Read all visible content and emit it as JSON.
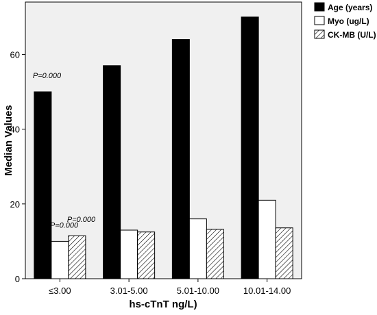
{
  "chart_data": {
    "type": "bar",
    "categories": [
      "≤3.00",
      "3.01-5.00",
      "5.01-10.00",
      "10.01-14.00"
    ],
    "series": [
      {
        "name": "Age (years)",
        "values": [
          50,
          57,
          64,
          70
        ],
        "fill": "#000000",
        "pattern": "solid"
      },
      {
        "name": "Myo (ug/L)",
        "values": [
          10,
          13,
          16,
          21
        ],
        "fill": "#ffffff",
        "pattern": "none"
      },
      {
        "name": "CK-MB (U/L)",
        "values": [
          11.5,
          12.5,
          13.2,
          13.6
        ],
        "fill": "#ffffff",
        "pattern": "hatch"
      }
    ],
    "xlabel": "hs-cTnT ng/L)",
    "ylabel": "Median Values",
    "ylim": [
      0,
      74
    ],
    "yticks": [
      0,
      20,
      40,
      60
    ],
    "annotations": [
      {
        "text": "P=0.000",
        "series": 0,
        "category": 0
      },
      {
        "text": "P=0.000",
        "series": 1,
        "category": 0
      },
      {
        "text": "P=0.000",
        "series": 2,
        "category": 0
      }
    ],
    "plot_background": "#f0f0f0",
    "grid": false,
    "legend_position": "top-right"
  }
}
